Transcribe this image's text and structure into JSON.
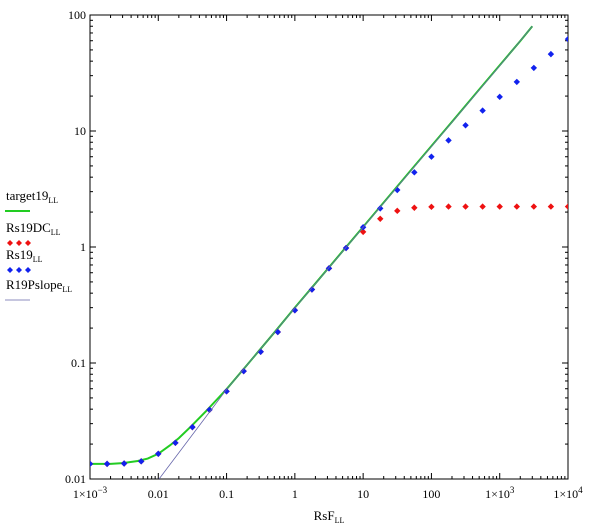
{
  "chart_data": {
    "type": "scatter",
    "xlabel": "RsF",
    "xlabel_sub": "LL",
    "ylabel": "",
    "x_scale": "log",
    "y_scale": "log",
    "xlim": [
      0.001,
      10000
    ],
    "ylim": [
      0.01,
      100
    ],
    "grid": false,
    "legend_position": "left",
    "x_ticks": [
      {
        "value": 0.001,
        "base": "1×10",
        "exp": "−3"
      },
      {
        "value": 0.01,
        "label": "0.01"
      },
      {
        "value": 0.1,
        "label": "0.1"
      },
      {
        "value": 1,
        "label": "1"
      },
      {
        "value": 10,
        "label": "10"
      },
      {
        "value": 100,
        "label": "100"
      },
      {
        "value": 1000,
        "base": "1×10",
        "exp": "3"
      },
      {
        "value": 10000,
        "base": "1×10",
        "exp": "4"
      }
    ],
    "y_ticks": [
      {
        "value": 0.01,
        "label": "0.01"
      },
      {
        "value": 0.1,
        "label": "0.1"
      },
      {
        "value": 1,
        "label": "1"
      },
      {
        "value": 10,
        "label": "10"
      },
      {
        "value": 100,
        "label": "100"
      }
    ],
    "series": [
      {
        "name": "target19",
        "name_sub": "LL",
        "kind": "line",
        "color": "#22cc22",
        "x": [
          0.001,
          0.002,
          0.003,
          0.005,
          0.007,
          0.01,
          0.015,
          0.02,
          0.03,
          0.05,
          0.07,
          0.1,
          0.2,
          0.5,
          1,
          2,
          5,
          10,
          20,
          50,
          100,
          200,
          500,
          1000,
          2000,
          3000
        ],
        "y": [
          0.0135,
          0.0135,
          0.0137,
          0.0143,
          0.015,
          0.0165,
          0.0196,
          0.0225,
          0.0283,
          0.0384,
          0.0475,
          0.0595,
          0.0964,
          0.183,
          0.3,
          0.485,
          0.92,
          1.49,
          2.42,
          4.59,
          7.42,
          12.0,
          22.8,
          36.9,
          59.7,
          80.0
        ]
      },
      {
        "name": "Rs19DC",
        "name_sub": "LL",
        "kind": "markers",
        "color": "#ee1111",
        "x": [
          0.001,
          0.00178,
          0.00316,
          0.00562,
          0.01,
          0.0178,
          0.0316,
          0.0562,
          0.1,
          0.178,
          0.316,
          0.562,
          1,
          1.78,
          3.16,
          5.62,
          10,
          17.8,
          31.6,
          56.2,
          100,
          178,
          316,
          562,
          1000,
          1780,
          3160,
          5620,
          10000
        ],
        "y": [
          0.0135,
          0.0135,
          0.0136,
          0.0142,
          0.0165,
          0.0205,
          0.028,
          0.0395,
          0.057,
          0.085,
          0.125,
          0.185,
          0.285,
          0.43,
          0.655,
          0.98,
          1.35,
          1.75,
          2.05,
          2.18,
          2.22,
          2.23,
          2.23,
          2.23,
          2.23,
          2.23,
          2.23,
          2.23,
          2.23
        ]
      },
      {
        "name": "Rs19",
        "name_sub": "LL",
        "kind": "markers",
        "color": "#1122ee",
        "x": [
          0.001,
          0.00178,
          0.00316,
          0.00562,
          0.01,
          0.0178,
          0.0316,
          0.0562,
          0.1,
          0.178,
          0.316,
          0.562,
          1,
          1.78,
          3.16,
          5.62,
          10,
          17.8,
          31.6,
          56.2,
          100,
          178,
          316,
          562,
          1000,
          1780,
          3160,
          5620,
          10000
        ],
        "y": [
          0.0135,
          0.0135,
          0.0136,
          0.0142,
          0.0165,
          0.0205,
          0.028,
          0.0395,
          0.057,
          0.085,
          0.125,
          0.185,
          0.285,
          0.43,
          0.655,
          0.98,
          1.48,
          2.15,
          3.1,
          4.4,
          6.0,
          8.3,
          11.2,
          15.0,
          19.7,
          26.5,
          35.0,
          46.0,
          62.0
        ]
      },
      {
        "name": "R19Pslope",
        "name_sub": "LL",
        "kind": "line",
        "color": "#6666aa",
        "x": [
          0.01,
          0.1,
          1,
          10,
          100,
          1000,
          3000
        ],
        "y": [
          0.0098,
          0.0592,
          0.298,
          1.48,
          7.35,
          36.5,
          80.0
        ]
      }
    ]
  }
}
